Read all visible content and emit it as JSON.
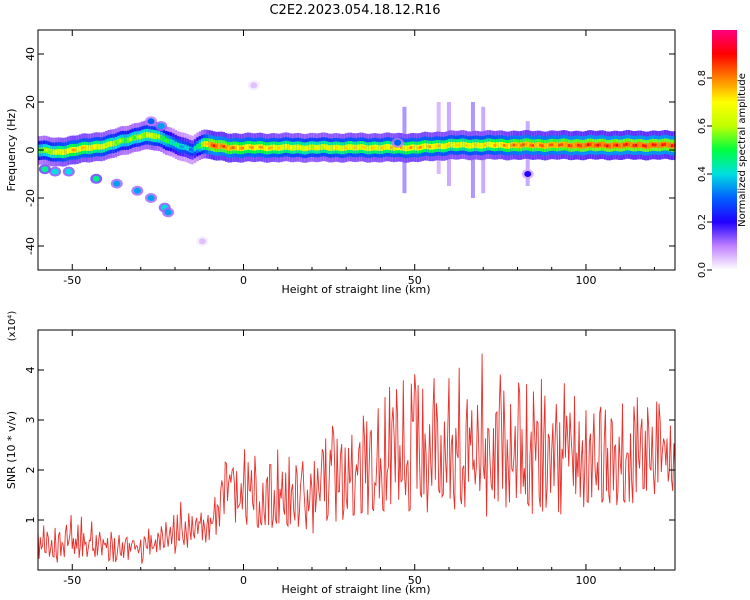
{
  "title": "C2E2.2023.054.18.12.R16",
  "chart_data": [
    {
      "type": "heatmap",
      "panel": "spectrogram",
      "xlabel": "Height of straight line (km)",
      "ylabel": "Frequency (Hz)",
      "xlim": [
        -60,
        126
      ],
      "ylim": [
        -50,
        50
      ],
      "x_ticks": [
        -50,
        0,
        50,
        100
      ],
      "y_ticks": [
        -40,
        -20,
        0,
        20,
        40
      ],
      "colorbar": {
        "label": "Normalized spectral amplitude",
        "range": [
          0.0,
          1.0
        ],
        "ticks": [
          "0.0",
          "0.2",
          "0.4",
          "0.6",
          "0.8"
        ],
        "colormap": [
          "#ffffff",
          "#c080ff",
          "#2000ff",
          "#0060ff",
          "#00e0e0",
          "#00ff40",
          "#c0ff00",
          "#ffff00",
          "#ff8000",
          "#ff0000",
          "#ff0080"
        ]
      },
      "ridge": {
        "x": [
          -60,
          -55,
          -50,
          -45,
          -40,
          -35,
          -30,
          -27,
          -24,
          -21,
          -18,
          -15,
          -12,
          -10,
          -5,
          0,
          5,
          10,
          20,
          30,
          40,
          50,
          60,
          70,
          80,
          90,
          100,
          110,
          120,
          126
        ],
        "freq": [
          0,
          -1,
          0,
          1,
          2,
          4,
          6,
          6,
          5,
          3,
          1,
          0,
          3,
          2,
          1,
          1,
          1,
          1,
          1,
          1,
          1,
          1,
          2,
          2,
          2,
          2,
          2,
          2,
          2,
          2
        ],
        "peak": [
          0.6,
          0.7,
          0.8,
          0.75,
          0.7,
          0.6,
          0.65,
          0.7,
          0.6,
          0.5,
          0.45,
          0.4,
          0.7,
          0.9,
          0.85,
          0.8,
          0.8,
          0.75,
          0.7,
          0.75,
          0.75,
          0.8,
          0.75,
          0.75,
          0.85,
          0.85,
          0.9,
          0.9,
          0.9,
          0.9
        ]
      },
      "blobs": [
        {
          "x": -58,
          "freq": -8,
          "amp": 0.45
        },
        {
          "x": -55,
          "freq": -9,
          "amp": 0.4
        },
        {
          "x": -51,
          "freq": -9,
          "amp": 0.4
        },
        {
          "x": -43,
          "freq": -12,
          "amp": 0.45
        },
        {
          "x": -37,
          "freq": -14,
          "amp": 0.35
        },
        {
          "x": -31,
          "freq": -17,
          "amp": 0.35
        },
        {
          "x": -27,
          "freq": -20,
          "amp": 0.35
        },
        {
          "x": -23,
          "freq": -24,
          "amp": 0.4
        },
        {
          "x": -22,
          "freq": -26,
          "amp": 0.35
        },
        {
          "x": -27,
          "freq": 12,
          "amp": 0.3
        },
        {
          "x": -24,
          "freq": 10,
          "amp": 0.35
        },
        {
          "x": 45,
          "freq": 3,
          "amp": 0.3
        },
        {
          "x": 83,
          "freq": -10,
          "amp": 0.2
        },
        {
          "x": 3,
          "freq": 27,
          "amp": 0.05
        },
        {
          "x": -12,
          "freq": -38,
          "amp": 0.05
        }
      ],
      "streaks": [
        {
          "x": 47,
          "from": 18,
          "to": -18,
          "amp": 0.15
        },
        {
          "x": 57,
          "from": 20,
          "to": -10,
          "amp": 0.1
        },
        {
          "x": 60,
          "from": 20,
          "to": -15,
          "amp": 0.12
        },
        {
          "x": 67,
          "from": 20,
          "to": -20,
          "amp": 0.15
        },
        {
          "x": 70,
          "from": 18,
          "to": -18,
          "amp": 0.12
        },
        {
          "x": 83,
          "from": 12,
          "to": -15,
          "amp": 0.12
        }
      ]
    },
    {
      "type": "line",
      "panel": "snr",
      "xlabel": "Height of straight line (km)",
      "ylabel": "SNR (10 * v/v)",
      "y_multiplier": "(x10⁴)",
      "xlim": [
        -60,
        126
      ],
      "ylim": [
        0,
        4.8
      ],
      "x_ticks": [
        -50,
        0,
        50,
        100
      ],
      "y_ticks": [
        1,
        2,
        3,
        4
      ],
      "color": "#e8302a",
      "envelope": {
        "x": [
          -60,
          -50,
          -40,
          -30,
          -20,
          -15,
          -10,
          -5,
          0,
          10,
          20,
          30,
          40,
          50,
          60,
          70,
          80,
          90,
          100,
          110,
          120,
          126
        ],
        "base": [
          0.35,
          0.4,
          0.35,
          0.35,
          0.5,
          0.6,
          0.7,
          1.2,
          1.0,
          1.0,
          0.9,
          1.1,
          1.2,
          1.3,
          1.3,
          1.2,
          1.3,
          1.3,
          1.4,
          1.4,
          1.5,
          1.6
        ],
        "amp": [
          0.6,
          0.8,
          0.6,
          0.6,
          0.9,
          0.8,
          0.7,
          1.3,
          1.6,
          1.6,
          1.8,
          2.6,
          2.8,
          3.2,
          3.0,
          3.3,
          3.0,
          2.8,
          2.4,
          2.4,
          2.3,
          1.4
        ]
      },
      "samples_per_km": 3
    }
  ]
}
